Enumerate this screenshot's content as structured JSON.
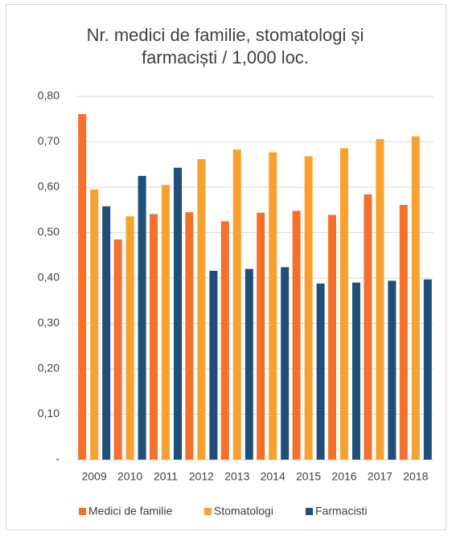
{
  "chart_data": {
    "type": "bar",
    "title": "Nr. medici de familie, stomatologi și farmaciști / 1,000 loc.",
    "categories": [
      "2009",
      "2010",
      "2011",
      "2012",
      "2013",
      "2014",
      "2015",
      "2016",
      "2017",
      "2018"
    ],
    "series": [
      {
        "name": "Medici de familie",
        "color": "#f4702b",
        "values": [
          0.761,
          0.485,
          0.541,
          0.545,
          0.525,
          0.544,
          0.548,
          0.539,
          0.584,
          0.561
        ]
      },
      {
        "name": "Stomatologi",
        "color": "#f9a12e",
        "values": [
          0.595,
          0.536,
          0.605,
          0.662,
          0.683,
          0.677,
          0.668,
          0.686,
          0.706,
          0.712
        ]
      },
      {
        "name": "Farmacisti",
        "color": "#1f4e79",
        "values": [
          0.558,
          0.625,
          0.643,
          0.416,
          0.42,
          0.424,
          0.388,
          0.39,
          0.394,
          0.397
        ]
      }
    ],
    "ylim": [
      0,
      0.8
    ],
    "yticks": [
      {
        "value": 0,
        "label": "-"
      },
      {
        "value": 0.1,
        "label": "0,10"
      },
      {
        "value": 0.2,
        "label": "0,20"
      },
      {
        "value": 0.3,
        "label": "0,30"
      },
      {
        "value": 0.4,
        "label": "0,40"
      },
      {
        "value": 0.5,
        "label": "0,50"
      },
      {
        "value": 0.6,
        "label": "0,60"
      },
      {
        "value": 0.7,
        "label": "0,70"
      },
      {
        "value": 0.8,
        "label": "0,80"
      }
    ],
    "grid": true,
    "legend": "bottom"
  }
}
